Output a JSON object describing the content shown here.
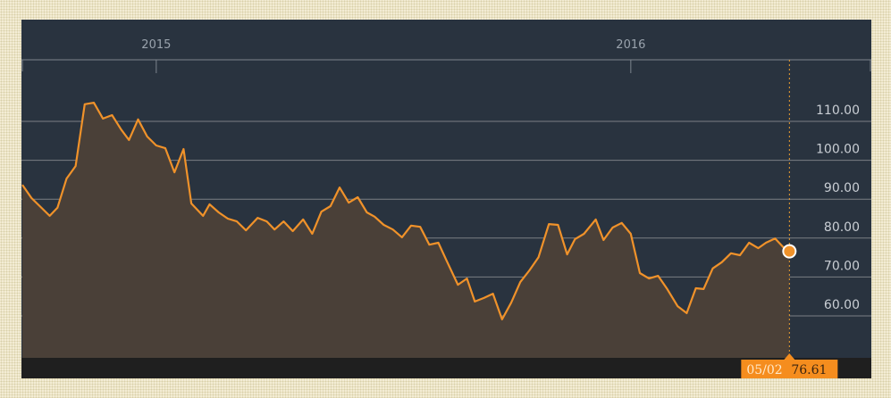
{
  "chart_data": {
    "type": "area",
    "title": "",
    "xlabel": "",
    "ylabel": "",
    "x_ticks": [
      "2015",
      "2016"
    ],
    "y_ticks": [
      "60.00",
      "70.00",
      "80.00",
      "90.00",
      "100.00",
      "110.00"
    ],
    "y_tick_values": [
      60,
      70,
      80,
      90,
      100,
      110
    ],
    "grid": true,
    "colors": {
      "line": "#f0922a",
      "fill": "#4a4038",
      "background": "#29333f",
      "marker": "#f0922a"
    },
    "tooltip": {
      "date": "05/02",
      "value": "76.61"
    },
    "points": [
      [
        "2014-09-20",
        93.7
      ],
      [
        "2014-09-27",
        90.3
      ],
      [
        "2014-10-04",
        88.0
      ],
      [
        "2014-10-11",
        85.7
      ],
      [
        "2014-10-17",
        87.8
      ],
      [
        "2014-10-24",
        95.3
      ],
      [
        "2014-10-31",
        98.5
      ],
      [
        "2014-11-07",
        114.4
      ],
      [
        "2014-11-14",
        114.8
      ],
      [
        "2014-11-21",
        110.7
      ],
      [
        "2014-11-28",
        111.6
      ],
      [
        "2014-12-05",
        107.9
      ],
      [
        "2014-12-11",
        105.2
      ],
      [
        "2014-12-18",
        110.5
      ],
      [
        "2014-12-25",
        106.1
      ],
      [
        "2015-01-01",
        103.8
      ],
      [
        "2015-01-08",
        103.1
      ],
      [
        "2015-01-15",
        96.9
      ],
      [
        "2015-01-22",
        102.9
      ],
      [
        "2015-01-28",
        88.9
      ],
      [
        "2015-02-06",
        85.7
      ],
      [
        "2015-02-11",
        88.7
      ],
      [
        "2015-02-18",
        86.6
      ],
      [
        "2015-02-25",
        85.0
      ],
      [
        "2015-03-04",
        84.3
      ],
      [
        "2015-03-11",
        82.0
      ],
      [
        "2015-03-20",
        85.2
      ],
      [
        "2015-03-27",
        84.3
      ],
      [
        "2015-04-02",
        82.2
      ],
      [
        "2015-04-09",
        84.3
      ],
      [
        "2015-04-16",
        81.8
      ],
      [
        "2015-04-24",
        84.8
      ],
      [
        "2015-05-01",
        81.1
      ],
      [
        "2015-05-08",
        86.8
      ],
      [
        "2015-05-15",
        88.2
      ],
      [
        "2015-05-22",
        93.0
      ],
      [
        "2015-05-29",
        89.1
      ],
      [
        "2015-06-05",
        90.5
      ],
      [
        "2015-06-12",
        86.6
      ],
      [
        "2015-06-18",
        85.5
      ],
      [
        "2015-06-25",
        83.4
      ],
      [
        "2015-07-02",
        82.2
      ],
      [
        "2015-07-09",
        80.2
      ],
      [
        "2015-07-16",
        83.2
      ],
      [
        "2015-07-23",
        82.9
      ],
      [
        "2015-07-30",
        78.3
      ],
      [
        "2015-08-06",
        78.8
      ],
      [
        "2015-08-12",
        74.4
      ],
      [
        "2015-08-21",
        68.0
      ],
      [
        "2015-08-28",
        69.6
      ],
      [
        "2015-09-03",
        63.7
      ],
      [
        "2015-09-10",
        64.6
      ],
      [
        "2015-09-17",
        65.7
      ],
      [
        "2015-09-24",
        59.1
      ],
      [
        "2015-10-01",
        63.4
      ],
      [
        "2015-10-08",
        68.7
      ],
      [
        "2015-10-15",
        71.7
      ],
      [
        "2015-10-22",
        75.1
      ],
      [
        "2015-10-30",
        83.6
      ],
      [
        "2015-11-06",
        83.4
      ],
      [
        "2015-11-13",
        75.8
      ],
      [
        "2015-11-19",
        79.7
      ],
      [
        "2015-11-26",
        81.1
      ],
      [
        "2015-12-05",
        84.8
      ],
      [
        "2015-12-11",
        79.5
      ],
      [
        "2015-12-18",
        82.7
      ],
      [
        "2015-12-25",
        83.9
      ],
      [
        "2016-01-01",
        81.1
      ],
      [
        "2016-01-08",
        71.0
      ],
      [
        "2016-01-15",
        69.6
      ],
      [
        "2016-01-22",
        70.3
      ],
      [
        "2016-01-29",
        66.9
      ],
      [
        "2016-02-06",
        62.5
      ],
      [
        "2016-02-13",
        60.7
      ],
      [
        "2016-02-20",
        67.1
      ],
      [
        "2016-02-26",
        66.9
      ],
      [
        "2016-03-04",
        72.2
      ],
      [
        "2016-03-11",
        73.8
      ],
      [
        "2016-03-18",
        76.1
      ],
      [
        "2016-03-25",
        75.6
      ],
      [
        "2016-04-01",
        78.8
      ],
      [
        "2016-04-08",
        77.4
      ],
      [
        "2016-04-14",
        78.8
      ],
      [
        "2016-04-21",
        79.9
      ],
      [
        "2016-04-28",
        77.4
      ],
      [
        "2016-05-02",
        76.61
      ]
    ]
  }
}
